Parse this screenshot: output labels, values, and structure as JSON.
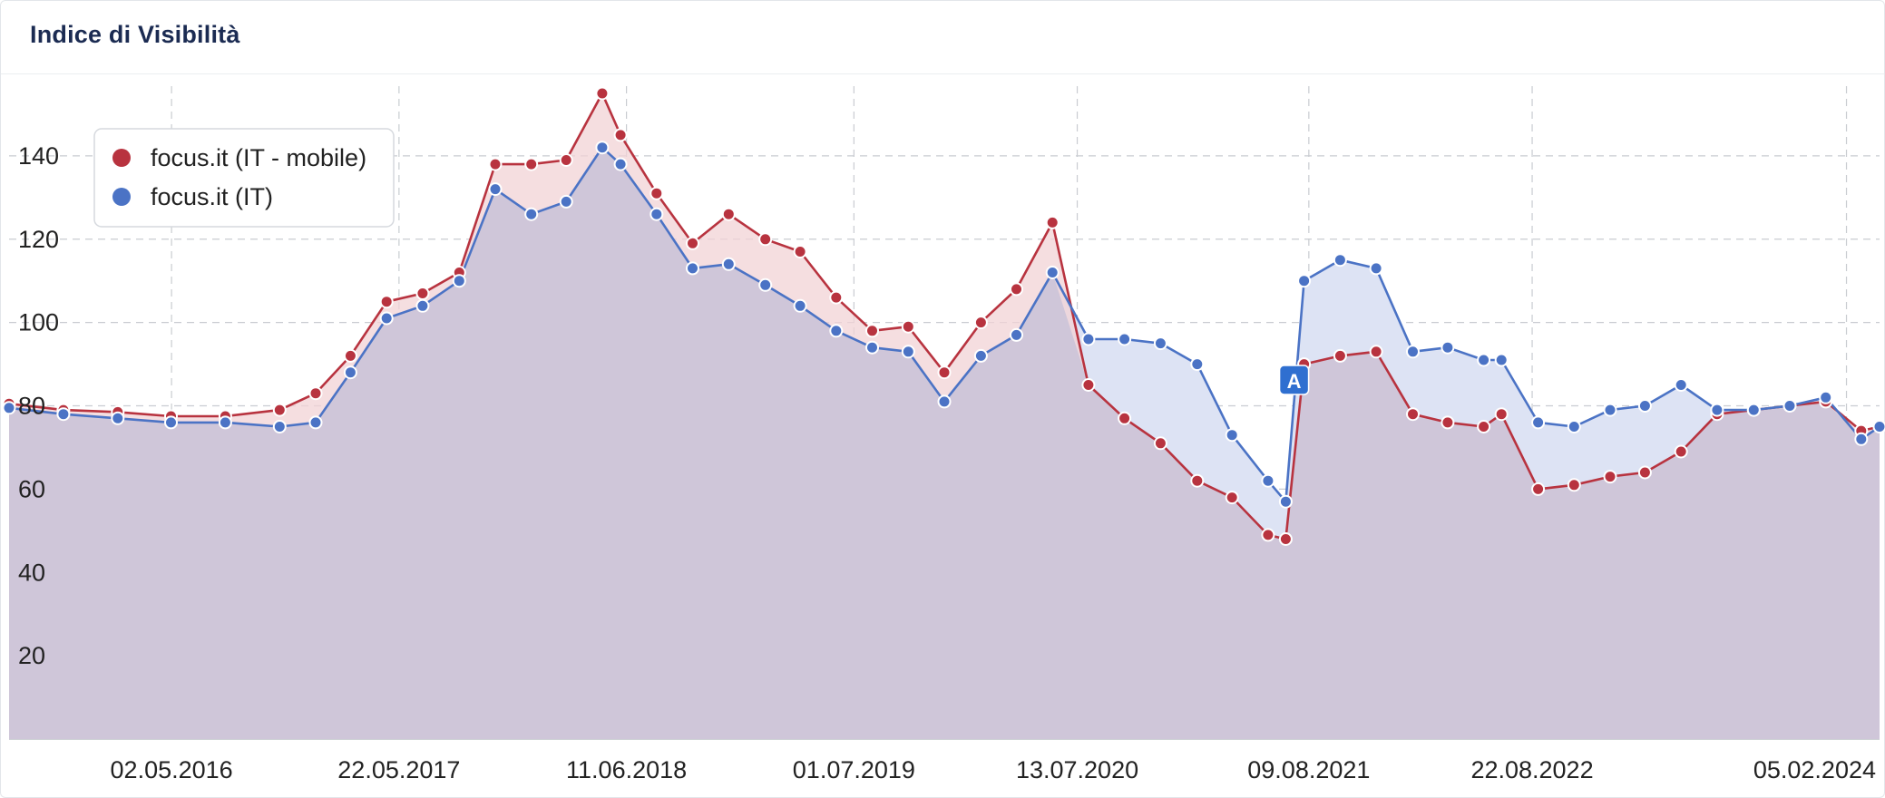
{
  "page": {
    "title": "Indice di Visibilità"
  },
  "chart_data": {
    "type": "area",
    "title": "Indice di Visibilità",
    "ylim": [
      0,
      160
    ],
    "yticks": [
      "20",
      "40",
      "60",
      "80",
      "100",
      "120",
      "140"
    ],
    "xticks": [
      "02.05.2016",
      "22.05.2017",
      "11.06.2018",
      "01.07.2019",
      "13.07.2020",
      "09.08.2021",
      "22.08.2022",
      "05.02.2024"
    ],
    "xrange": [
      "01.08.2015",
      "01.04.2024"
    ],
    "grid": true,
    "legend_position": "top-left",
    "annotations": [
      {
        "label": "A",
        "x": "15.07.2021"
      }
    ],
    "series": [
      {
        "name": "focus.it (IT - mobile)",
        "color": "#b8333f",
        "fill": "#f1d3d6",
        "points": [
          [
            "01.08.2015",
            80.5
          ],
          [
            "01.11.2015",
            79
          ],
          [
            "01.02.2016",
            78.5
          ],
          [
            "01.05.2016",
            77.5
          ],
          [
            "01.08.2016",
            77.5
          ],
          [
            "01.11.2016",
            79
          ],
          [
            "01.01.2017",
            83
          ],
          [
            "01.03.2017",
            92
          ],
          [
            "01.05.2017",
            105
          ],
          [
            "01.07.2017",
            107
          ],
          [
            "01.09.2017",
            112
          ],
          [
            "01.11.2017",
            138
          ],
          [
            "01.01.2018",
            138
          ],
          [
            "01.03.2018",
            139
          ],
          [
            "01.05.2018",
            155
          ],
          [
            "01.06.2018",
            145
          ],
          [
            "01.08.2018",
            131
          ],
          [
            "01.10.2018",
            119
          ],
          [
            "01.12.2018",
            126
          ],
          [
            "01.02.2019",
            120
          ],
          [
            "01.04.2019",
            117
          ],
          [
            "01.06.2019",
            106
          ],
          [
            "01.08.2019",
            98
          ],
          [
            "01.10.2019",
            99
          ],
          [
            "01.12.2019",
            88
          ],
          [
            "01.02.2020",
            100
          ],
          [
            "01.04.2020",
            108
          ],
          [
            "01.06.2020",
            124
          ],
          [
            "01.08.2020",
            85
          ],
          [
            "01.10.2020",
            77
          ],
          [
            "01.12.2020",
            71
          ],
          [
            "01.02.2021",
            62
          ],
          [
            "01.04.2021",
            58
          ],
          [
            "01.06.2021",
            49
          ],
          [
            "01.07.2021",
            48
          ],
          [
            "01.08.2021",
            90
          ],
          [
            "01.10.2021",
            92
          ],
          [
            "01.12.2021",
            93
          ],
          [
            "01.02.2022",
            78
          ],
          [
            "01.04.2022",
            76
          ],
          [
            "01.06.2022",
            75
          ],
          [
            "01.07.2022",
            78
          ],
          [
            "01.09.2022",
            60
          ],
          [
            "01.11.2022",
            61
          ],
          [
            "01.01.2023",
            63
          ],
          [
            "01.03.2023",
            64
          ],
          [
            "01.05.2023",
            69
          ],
          [
            "01.07.2023",
            78
          ],
          [
            "01.09.2023",
            79
          ],
          [
            "01.11.2023",
            80
          ],
          [
            "01.01.2024",
            81
          ],
          [
            "01.03.2024",
            74
          ],
          [
            "01.04.2024",
            75
          ]
        ]
      },
      {
        "name": "focus.it (IT)",
        "color": "#4b73c5",
        "fill": "#dde3f4",
        "points": [
          [
            "01.08.2015",
            79.5
          ],
          [
            "01.11.2015",
            78
          ],
          [
            "01.02.2016",
            77
          ],
          [
            "01.05.2016",
            76
          ],
          [
            "01.08.2016",
            76
          ],
          [
            "01.11.2016",
            75
          ],
          [
            "01.01.2017",
            76
          ],
          [
            "01.03.2017",
            88
          ],
          [
            "01.05.2017",
            101
          ],
          [
            "01.07.2017",
            104
          ],
          [
            "01.09.2017",
            110
          ],
          [
            "01.11.2017",
            132
          ],
          [
            "01.01.2018",
            126
          ],
          [
            "01.03.2018",
            129
          ],
          [
            "01.05.2018",
            142
          ],
          [
            "01.06.2018",
            138
          ],
          [
            "01.08.2018",
            126
          ],
          [
            "01.10.2018",
            113
          ],
          [
            "01.12.2018",
            114
          ],
          [
            "01.02.2019",
            109
          ],
          [
            "01.04.2019",
            104
          ],
          [
            "01.06.2019",
            98
          ],
          [
            "01.08.2019",
            94
          ],
          [
            "01.10.2019",
            93
          ],
          [
            "01.12.2019",
            81
          ],
          [
            "01.02.2020",
            92
          ],
          [
            "01.04.2020",
            97
          ],
          [
            "01.06.2020",
            112
          ],
          [
            "01.08.2020",
            96
          ],
          [
            "01.10.2020",
            96
          ],
          [
            "01.12.2020",
            95
          ],
          [
            "01.02.2021",
            90
          ],
          [
            "01.04.2021",
            73
          ],
          [
            "01.06.2021",
            62
          ],
          [
            "01.07.2021",
            57
          ],
          [
            "01.08.2021",
            110
          ],
          [
            "01.10.2021",
            115
          ],
          [
            "01.12.2021",
            113
          ],
          [
            "01.02.2022",
            93
          ],
          [
            "01.04.2022",
            94
          ],
          [
            "01.06.2022",
            91
          ],
          [
            "01.07.2022",
            91
          ],
          [
            "01.09.2022",
            76
          ],
          [
            "01.11.2022",
            75
          ],
          [
            "01.01.2023",
            79
          ],
          [
            "01.03.2023",
            80
          ],
          [
            "01.05.2023",
            85
          ],
          [
            "01.07.2023",
            79
          ],
          [
            "01.09.2023",
            79
          ],
          [
            "01.11.2023",
            80
          ],
          [
            "01.01.2024",
            82
          ],
          [
            "01.03.2024",
            72
          ],
          [
            "01.04.2024",
            75
          ]
        ]
      }
    ]
  }
}
